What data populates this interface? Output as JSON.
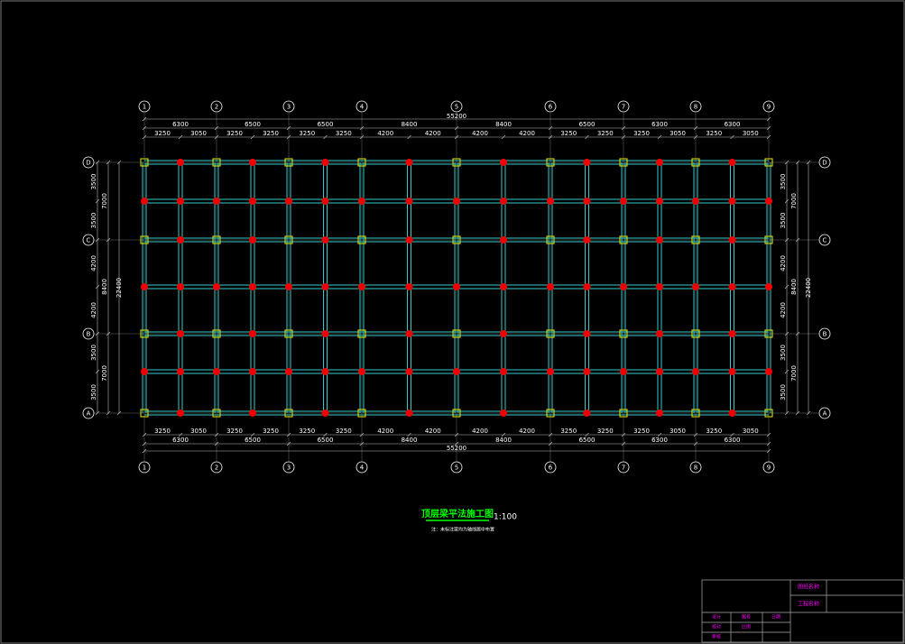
{
  "axes": {
    "columns": [
      "1",
      "2",
      "3",
      "4",
      "5",
      "6",
      "7",
      "8",
      "9"
    ],
    "rows": [
      "D",
      "C",
      "B",
      "A"
    ]
  },
  "dimensions": {
    "top_total": 55200,
    "spans": [
      6300,
      6500,
      6500,
      8400,
      8400,
      6500,
      6300,
      6300
    ],
    "sub_spans": [
      3250,
      3050,
      3250,
      3250,
      3250,
      3250,
      4200,
      4200,
      4200,
      4200,
      3250,
      3250,
      3250,
      3050,
      3250,
      3050
    ],
    "left_total": 22400,
    "row_spans": [
      7000,
      8400,
      7000
    ],
    "row_sub_spans": [
      3500,
      3500,
      4200,
      4200,
      3500,
      3500
    ]
  },
  "title": {
    "text": "顶层梁平法施工图",
    "scale": "1:100",
    "note": "注：未标注梁均为轴线居中布置"
  },
  "title_block": {
    "drawing_name": "图纸名称",
    "project_name": "工程名称",
    "labels": [
      "设计",
      "校对",
      "审核",
      "图号",
      "比例",
      "日期"
    ]
  }
}
